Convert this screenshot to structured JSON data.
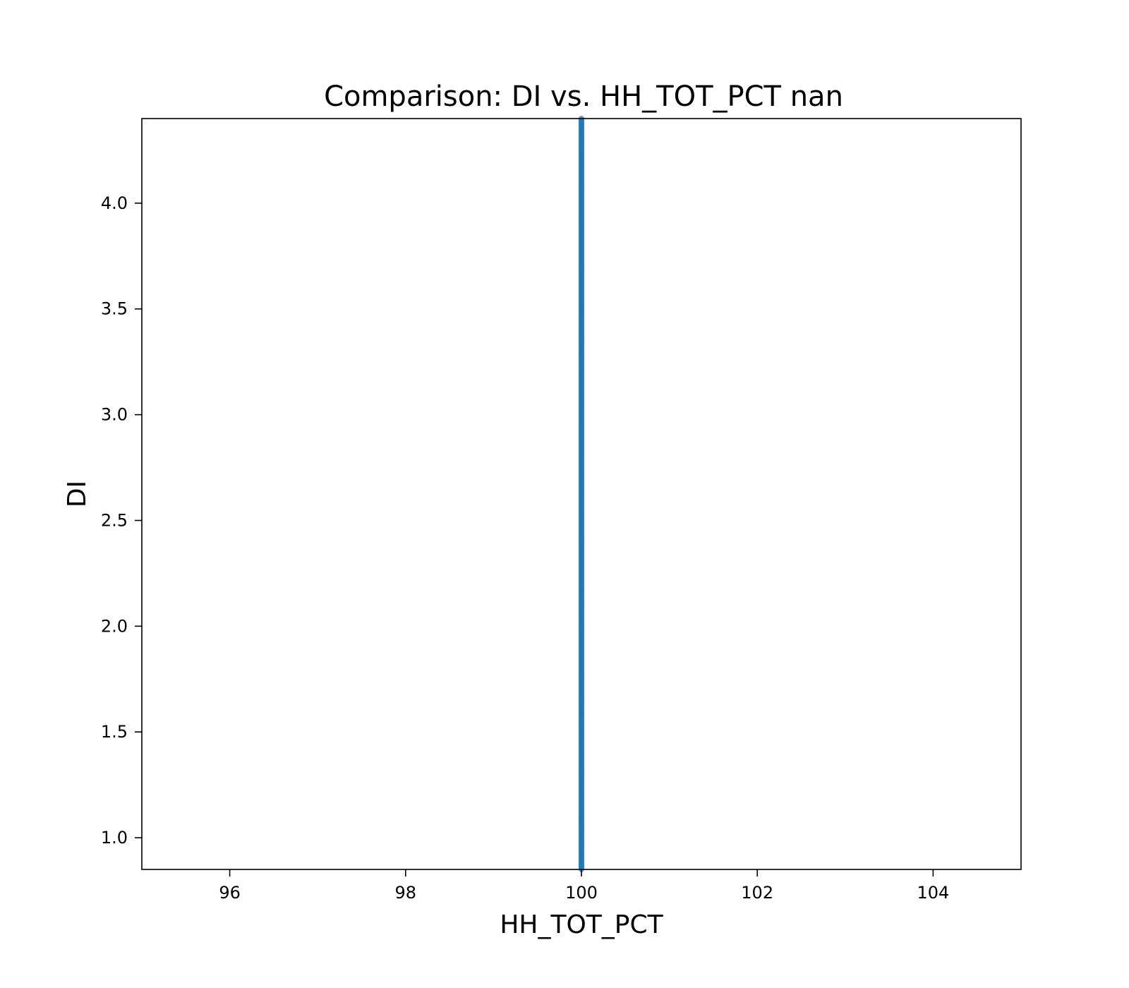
{
  "chart_data": {
    "type": "scatter",
    "title": "Comparison:  DI  vs.  HH_TOT_PCT  nan",
    "xlabel": "HH_TOT_PCT",
    "ylabel": "DI",
    "xlim": [
      95,
      105
    ],
    "ylim": [
      0.85,
      4.4
    ],
    "x_ticks": [
      96,
      98,
      100,
      102,
      104
    ],
    "y_ticks": [
      1.0,
      1.5,
      2.0,
      2.5,
      3.0,
      3.5,
      4.0
    ],
    "grid": false,
    "marker_color": "#1f77b4",
    "series": [
      {
        "x_constant": 100,
        "y_range": [
          0.85,
          4.4
        ],
        "description_count_note": null
      }
    ]
  }
}
